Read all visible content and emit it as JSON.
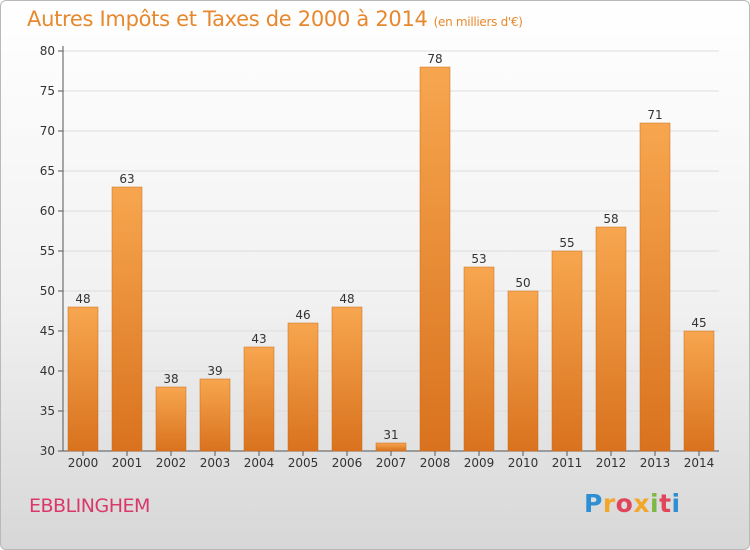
{
  "header": {
    "title": "Autres Impôts et Taxes de 2000 à 2014",
    "unit": "(en milliers d'€)"
  },
  "footer": {
    "city": "EBBLINGHEM",
    "logo_text": "Proxiti"
  },
  "colors": {
    "bar_light": "#f7a64f",
    "bar_dark": "#d9721f",
    "title": "#e8882e",
    "city": "#d9396a"
  },
  "chart_data": {
    "type": "bar",
    "title": "Autres Impôts et Taxes de 2000 à 2014",
    "subtitle": "(en milliers d'€)",
    "categories": [
      "2000",
      "2001",
      "2002",
      "2003",
      "2004",
      "2005",
      "2006",
      "2007",
      "2008",
      "2009",
      "2010",
      "2011",
      "2012",
      "2013",
      "2014"
    ],
    "values": [
      48,
      63,
      38,
      39,
      43,
      46,
      48,
      31,
      78,
      53,
      50,
      55,
      58,
      71,
      45
    ],
    "ylim": [
      30,
      80
    ],
    "yticks": [
      30,
      35,
      40,
      45,
      50,
      55,
      60,
      65,
      70,
      75,
      80
    ],
    "grid": true,
    "legend": "none"
  }
}
